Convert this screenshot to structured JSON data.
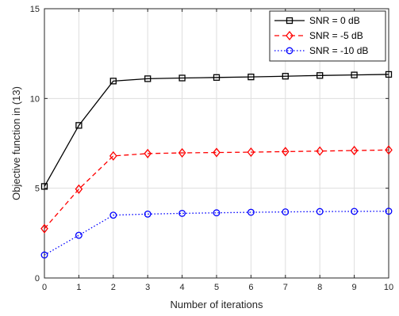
{
  "chart_data": {
    "type": "line",
    "xlabel": "Number of iterations",
    "ylabel": "Objective function in (13)",
    "xlim": [
      0,
      10
    ],
    "ylim": [
      0,
      15
    ],
    "x_ticks": [
      0,
      1,
      2,
      3,
      4,
      5,
      6,
      7,
      8,
      9,
      10
    ],
    "y_ticks": [
      0,
      5,
      10,
      15
    ],
    "grid": true,
    "legend_position": "top-right",
    "x": [
      0,
      1,
      2,
      3,
      4,
      5,
      6,
      7,
      8,
      9,
      10
    ],
    "series": [
      {
        "name": "SNR = 0 dB",
        "color": "#000000",
        "line_style": "solid",
        "marker": "square",
        "values": [
          5.1,
          8.5,
          10.97,
          11.1,
          11.14,
          11.17,
          11.2,
          11.24,
          11.28,
          11.31,
          11.34
        ]
      },
      {
        "name": "SNR = -5 dB",
        "color": "#ff0000",
        "line_style": "dashed",
        "marker": "diamond",
        "values": [
          2.75,
          4.95,
          6.8,
          6.93,
          6.97,
          6.99,
          7.01,
          7.04,
          7.07,
          7.1,
          7.13
        ]
      },
      {
        "name": "SNR = -10 dB",
        "color": "#0000ff",
        "line_style": "dotted",
        "marker": "circle",
        "values": [
          1.28,
          2.38,
          3.5,
          3.56,
          3.6,
          3.63,
          3.66,
          3.68,
          3.7,
          3.71,
          3.72
        ]
      }
    ]
  }
}
